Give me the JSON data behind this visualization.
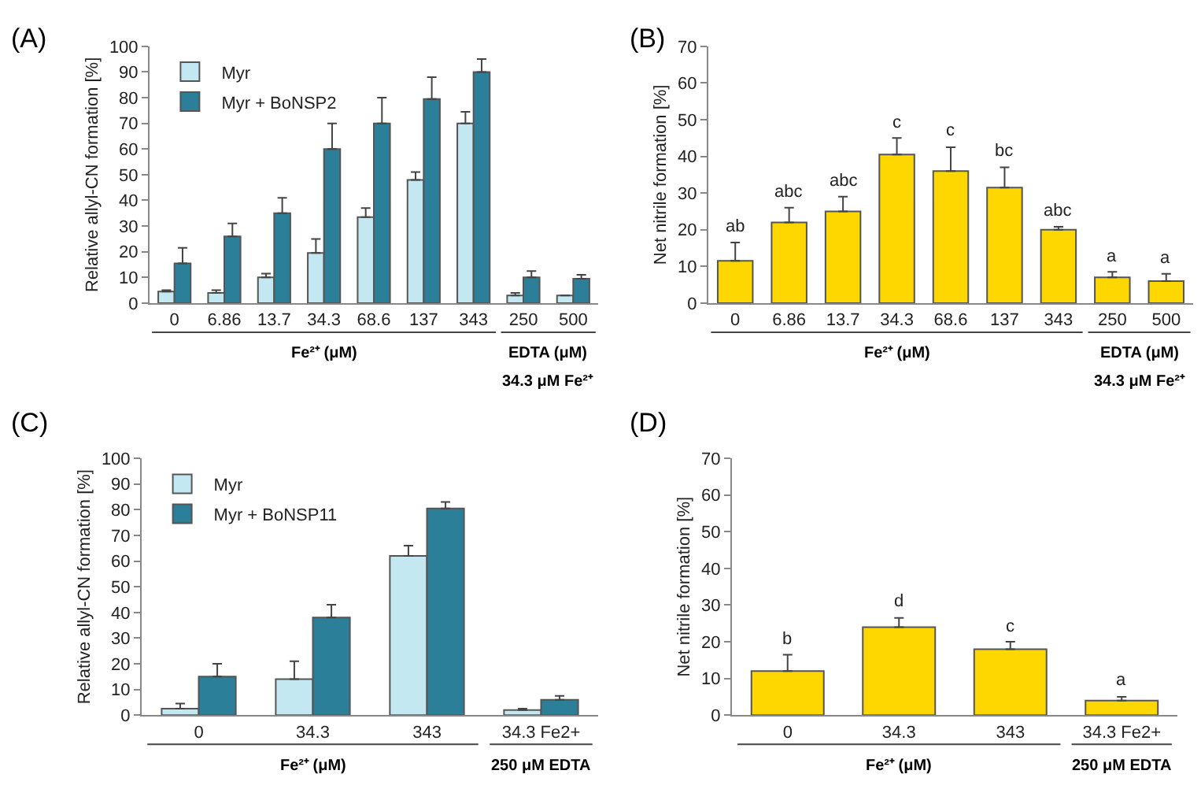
{
  "chart_data": [
    {
      "type": "bar",
      "title": "(A)",
      "ylabel": "Relative allyl-CN formation [%]",
      "categories": [
        "0",
        "6.86",
        "13.7",
        "34.3",
        "68.6",
        "137",
        "343",
        "250",
        "500"
      ],
      "ylim": [
        0,
        100
      ],
      "yticks": [
        0,
        10,
        20,
        30,
        40,
        50,
        60,
        70,
        80,
        90,
        100
      ],
      "legend": "top left",
      "series": [
        {
          "name": "Myr",
          "color": "#c4e8f2",
          "values": [
            4.5,
            4,
            10,
            19.5,
            33.5,
            48,
            70,
            3,
            3
          ],
          "errors": [
            [
              4.5,
              5
            ],
            [
              4,
              5
            ],
            [
              10,
              11.5
            ],
            [
              19.5,
              25
            ],
            [
              33.5,
              37
            ],
            [
              48,
              51
            ],
            [
              70,
              74.5
            ],
            [
              3,
              4
            ],
            null
          ]
        },
        {
          "name": "Myr + BoNSP2",
          "color": "#2b7f99",
          "values": [
            15.5,
            26,
            35,
            60,
            70,
            79.5,
            90,
            10,
            9.5
          ],
          "errors": [
            [
              15.5,
              21.5
            ],
            [
              26,
              31
            ],
            [
              35,
              41
            ],
            [
              60,
              70
            ],
            [
              70,
              80
            ],
            [
              79.5,
              88
            ],
            [
              90,
              95
            ],
            [
              10,
              12.5
            ],
            [
              9.5,
              11
            ]
          ]
        }
      ],
      "annotations": [
        "Fe²⁺ (μM)",
        "EDTA (μM)",
        "34.3 μM Fe²⁺"
      ]
    },
    {
      "type": "bar",
      "title": "(B)",
      "ylabel": "Net nitrile formation [%]",
      "categories": [
        "0",
        "6.86",
        "13.7",
        "34.3",
        "68.6",
        "137",
        "343",
        "250",
        "500"
      ],
      "ylim": [
        0,
        70
      ],
      "yticks": [
        0,
        10,
        20,
        30,
        40,
        50,
        60,
        70
      ],
      "series": [
        {
          "color": "#ffd700",
          "values": [
            11.5,
            22,
            25,
            40.5,
            36,
            31.5,
            20,
            7,
            6
          ],
          "errors": [
            [
              11.5,
              16.5
            ],
            [
              22,
              26
            ],
            [
              25,
              29
            ],
            [
              40.5,
              45
            ],
            [
              36,
              42.5
            ],
            [
              31.5,
              37
            ],
            [
              20,
              20.8
            ],
            [
              7,
              8.5
            ],
            [
              6,
              8
            ]
          ],
          "value_labels": [
            "ab",
            "abc",
            "abc",
            "c",
            "c",
            "bc",
            "abc",
            "a",
            "a"
          ]
        }
      ],
      "annotations": [
        "Fe²⁺ (μM)",
        "EDTA (μM)",
        "34.3 μM Fe²⁺"
      ]
    },
    {
      "type": "bar",
      "title": "(C)",
      "ylabel": "Relative allyl-CN formation [%]",
      "categories": [
        "0",
        "34.3",
        "343",
        "34.3 Fe2+"
      ],
      "ylim": [
        0,
        100
      ],
      "yticks": [
        0,
        10,
        20,
        30,
        40,
        50,
        60,
        70,
        80,
        90,
        100
      ],
      "legend": "top left",
      "series": [
        {
          "name": "Myr",
          "color": "#c4e8f2",
          "values": [
            2.5,
            14,
            62,
            2
          ],
          "errors": [
            [
              2.5,
              4.5
            ],
            [
              14,
              21
            ],
            [
              62,
              66
            ],
            [
              2,
              2.5
            ]
          ]
        },
        {
          "name": "Myr + BoNSP11",
          "color": "#2b7f99",
          "values": [
            15,
            38,
            80.5,
            6
          ],
          "errors": [
            [
              15,
              20
            ],
            [
              38,
              43
            ],
            [
              80.5,
              83
            ],
            [
              6,
              7.5
            ]
          ]
        }
      ],
      "annotations": [
        "Fe²⁺ (μM)",
        "250 μM EDTA"
      ]
    },
    {
      "type": "bar",
      "title": "(D)",
      "ylabel": "Net nitrile formation [%]",
      "categories": [
        "0",
        "34.3",
        "343",
        "34.3 Fe2+"
      ],
      "ylim": [
        0,
        70
      ],
      "yticks": [
        0,
        10,
        20,
        30,
        40,
        50,
        60,
        70
      ],
      "series": [
        {
          "color": "#ffd700",
          "values": [
            12,
            24,
            18,
            4
          ],
          "errors": [
            [
              12,
              16.5
            ],
            [
              24,
              26.5
            ],
            [
              18,
              20
            ],
            [
              4,
              5
            ]
          ],
          "value_labels": [
            "b",
            "d",
            "c",
            "a"
          ]
        }
      ],
      "annotations": [
        "Fe²⁺ (μM)",
        "250 μM EDTA"
      ]
    }
  ]
}
